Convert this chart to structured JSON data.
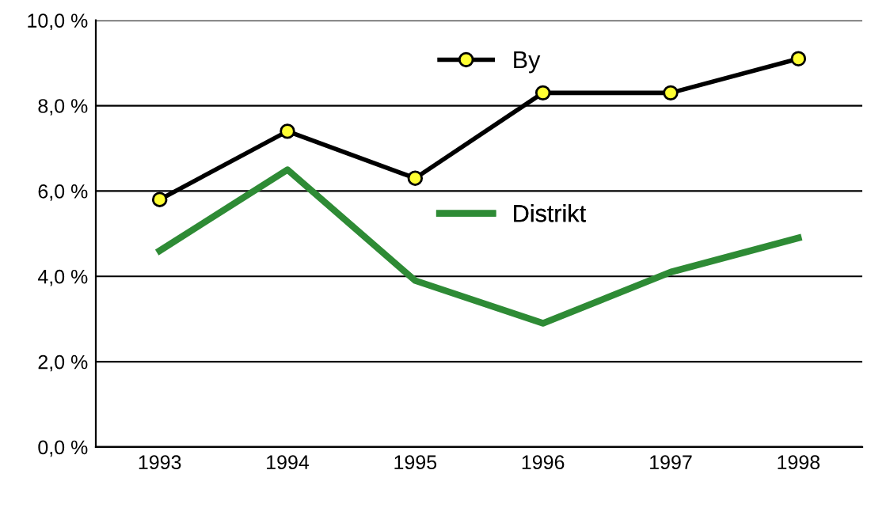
{
  "chart_data": {
    "type": "line",
    "categories": [
      "1993",
      "1994",
      "1995",
      "1996",
      "1997",
      "1998"
    ],
    "series": [
      {
        "name": "By",
        "color": "#000000",
        "marker": "circle",
        "values": [
          5.8,
          7.4,
          6.3,
          8.3,
          8.3,
          9.1
        ]
      },
      {
        "name": "Distrikt",
        "color": "#2e8b35",
        "marker": "none",
        "values": [
          4.6,
          6.5,
          3.9,
          2.9,
          4.1,
          4.9
        ]
      }
    ],
    "ylim": [
      0,
      10
    ],
    "yticks": [
      {
        "value": 0,
        "label": "0,0 %"
      },
      {
        "value": 2,
        "label": "2,0 %"
      },
      {
        "value": 4,
        "label": "4,0 %"
      },
      {
        "value": 6,
        "label": "6,0 %"
      },
      {
        "value": 8,
        "label": "8,0 %"
      },
      {
        "value": 10,
        "label": "10,0 %"
      }
    ],
    "grid": "y",
    "legend": "top"
  }
}
